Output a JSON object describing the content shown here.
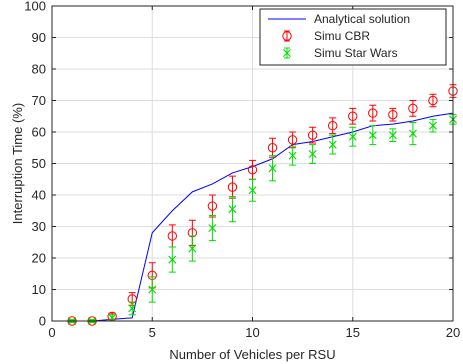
{
  "chart_data": {
    "type": "line",
    "title": "",
    "xlabel": "Number of Vehicles per RSU",
    "ylabel": "Interruption Time (%)",
    "xlim": [
      0,
      20
    ],
    "ylim": [
      0,
      100
    ],
    "xticks": [
      0,
      5,
      10,
      15,
      20
    ],
    "yticks": [
      0,
      10,
      20,
      30,
      40,
      50,
      60,
      70,
      80,
      90,
      100
    ],
    "grid": true,
    "legend_position": "top-right",
    "series": [
      {
        "name": "Analytical solution",
        "style": "line",
        "color": "#0000ff",
        "x": [
          1,
          2,
          3,
          4,
          5,
          6,
          7,
          8,
          9,
          10,
          11,
          12,
          13,
          14,
          15,
          16,
          17,
          18,
          19,
          20
        ],
        "y": [
          0,
          0,
          0.5,
          1,
          28,
          35,
          41,
          43.5,
          47,
          49,
          51.5,
          56,
          57,
          58.5,
          60,
          62,
          62.5,
          63.5,
          65,
          66
        ]
      },
      {
        "name": "Simu CBR",
        "style": "marker-o",
        "color": "#ff0000",
        "x": [
          1,
          2,
          3,
          4,
          5,
          6,
          7,
          8,
          9,
          10,
          11,
          12,
          13,
          14,
          15,
          16,
          17,
          18,
          19,
          20
        ],
        "y": [
          0,
          0,
          1.5,
          7,
          14.5,
          27,
          28,
          36.5,
          42.5,
          48,
          55,
          57.5,
          59,
          62,
          65,
          66,
          65.5,
          67.5,
          70,
          73
        ],
        "err": [
          0.4,
          0.4,
          1,
          2,
          4,
          3.5,
          4,
          3.5,
          3.5,
          3,
          3,
          2.5,
          2.5,
          2.5,
          2.5,
          2.5,
          2,
          2.5,
          2,
          2
        ]
      },
      {
        "name": "Simu Star Wars",
        "style": "marker-x",
        "color": "#00dd00",
        "x": [
          1,
          2,
          3,
          4,
          5,
          6,
          7,
          8,
          9,
          10,
          11,
          12,
          13,
          14,
          15,
          16,
          17,
          18,
          19,
          20
        ],
        "y": [
          0,
          0,
          1,
          4,
          10,
          19.5,
          23,
          29.5,
          35.5,
          41.5,
          48.5,
          52.5,
          53,
          56,
          58.5,
          59,
          59,
          59.5,
          62,
          64
        ],
        "err": [
          0.3,
          0.3,
          1,
          2,
          4,
          4,
          4,
          4,
          4,
          3.5,
          4,
          3,
          3,
          3,
          3,
          3,
          2,
          3.5,
          2,
          1.5
        ]
      }
    ]
  }
}
